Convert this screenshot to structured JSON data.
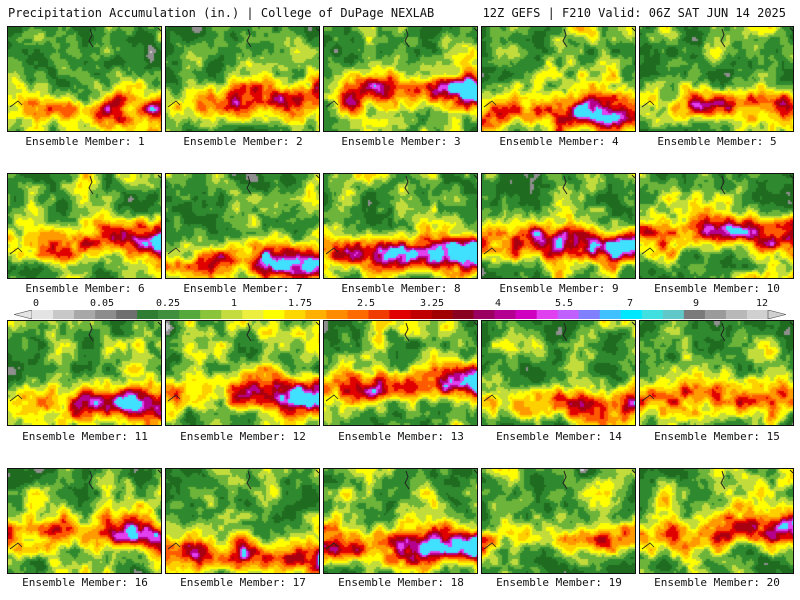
{
  "header": {
    "title_left": "Precipitation Accumulation (in.) | College of DuPage NEXLAB",
    "title_right": "12Z GEFS | F210 Valid: 06Z SAT JUN 14 2025"
  },
  "members": [
    {
      "label": "Ensemble Member: 1"
    },
    {
      "label": "Ensemble Member: 2"
    },
    {
      "label": "Ensemble Member: 3"
    },
    {
      "label": "Ensemble Member: 4"
    },
    {
      "label": "Ensemble Member: 5"
    },
    {
      "label": "Ensemble Member: 6"
    },
    {
      "label": "Ensemble Member: 7"
    },
    {
      "label": "Ensemble Member: 8"
    },
    {
      "label": "Ensemble Member: 9"
    },
    {
      "label": "Ensemble Member: 10"
    },
    {
      "label": "Ensemble Member: 11"
    },
    {
      "label": "Ensemble Member: 12"
    },
    {
      "label": "Ensemble Member: 13"
    },
    {
      "label": "Ensemble Member: 14"
    },
    {
      "label": "Ensemble Member: 15"
    },
    {
      "label": "Ensemble Member: 16"
    },
    {
      "label": "Ensemble Member: 17"
    },
    {
      "label": "Ensemble Member: 18"
    },
    {
      "label": "Ensemble Member: 19"
    },
    {
      "label": "Ensemble Member: 20"
    }
  ],
  "colorbar": {
    "tick_labels": [
      "0",
      "0.05",
      "0.25",
      "1",
      "1.75",
      "2.5",
      "3.25",
      "4",
      "5.5",
      "7",
      "9",
      "12"
    ],
    "colors": [
      "#e4e4e4",
      "#c8c8c8",
      "#a8a8a8",
      "#8c8c8c",
      "#6e6e6e",
      "#2e7d32",
      "#3f8f3f",
      "#55a83a",
      "#8ac43a",
      "#c4dc40",
      "#ecee40",
      "#ffff00",
      "#ffd700",
      "#ffb000",
      "#ff8c00",
      "#ff6a00",
      "#f03c00",
      "#e00000",
      "#c00000",
      "#a00000",
      "#8a0020",
      "#9a0060",
      "#b40090",
      "#d000c0",
      "#e040f0",
      "#c060ff",
      "#8080ff",
      "#40c0ff",
      "#00e8ff",
      "#40e0e0",
      "#60c8c8",
      "#7a7a7a",
      "#9a9a9a",
      "#b8b8b8",
      "#d0d0d0"
    ]
  }
}
